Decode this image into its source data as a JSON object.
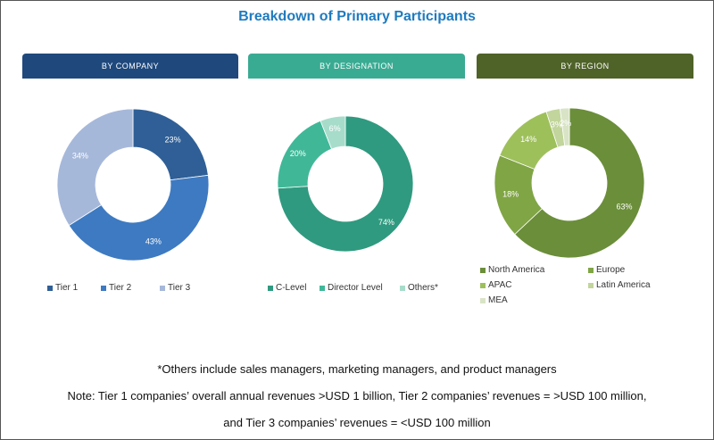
{
  "title": "Breakdown of Primary Participants",
  "chart_data": [
    {
      "type": "pie",
      "donut": true,
      "header": "BY COMPANY",
      "header_color": "#1f497d",
      "labels": [
        "Tier 1",
        "Tier 2",
        "Tier 3"
      ],
      "values": [
        23,
        43,
        34
      ],
      "value_labels": [
        "23%",
        "43%",
        "34%"
      ],
      "colors": [
        "#2f5f96",
        "#3e7ac1",
        "#a6b8da"
      ]
    },
    {
      "type": "pie",
      "donut": true,
      "header": "BY DESIGNATION",
      "header_color": "#3aab93",
      "labels": [
        "C-Level",
        "Director Level",
        "Others*"
      ],
      "values": [
        74,
        20,
        6
      ],
      "value_labels": [
        "74%",
        "20%",
        "6%"
      ],
      "colors": [
        "#2f9a7f",
        "#40b898",
        "#a7dccb"
      ]
    },
    {
      "type": "pie",
      "donut": true,
      "header": "BY REGION",
      "header_color": "#4f6228",
      "labels": [
        "North America",
        "Europe",
        "APAC",
        "Latin America",
        "MEA"
      ],
      "values": [
        63,
        18,
        14,
        3,
        2
      ],
      "value_labels": [
        "63%",
        "18%",
        "14%",
        "3%",
        "2%"
      ],
      "colors": [
        "#6b8e3a",
        "#80a545",
        "#9ec05b",
        "#c2d59c",
        "#d9e4c6"
      ]
    }
  ],
  "notes": [
    "*Others include sales managers, marketing managers, and product managers",
    "Note: Tier 1 companies’ overall annual revenues >USD 1 billion, Tier 2 companies’ revenues = >USD 100 million,",
    "and Tier 3 companies’ revenues = <USD 100 million"
  ]
}
